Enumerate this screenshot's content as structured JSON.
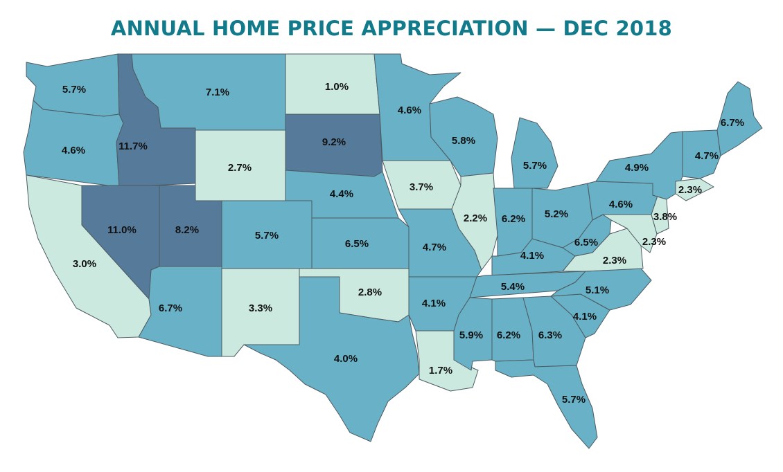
{
  "title": "ANNUAL HOME PRICE APPRECIATION — DEC 2018",
  "colors": {
    "background": "#ffffff",
    "title": "#117a8b",
    "border": "#4d5b62",
    "high": "#557a9a",
    "mid": "#68b1c6",
    "low": "#cce9df"
  },
  "states": {
    "WA": {
      "name": "Washington",
      "label": "5.7%",
      "value": 5.7,
      "tier": "mid"
    },
    "OR": {
      "name": "Oregon",
      "label": "4.6%",
      "value": 4.6,
      "tier": "mid"
    },
    "CA": {
      "name": "California",
      "label": "3.0%",
      "value": 3.0,
      "tier": "low"
    },
    "ID": {
      "name": "Idaho",
      "label": "11.7%",
      "value": 11.7,
      "tier": "high"
    },
    "NV": {
      "name": "Nevada",
      "label": "11.0%",
      "value": 11.0,
      "tier": "high"
    },
    "UT": {
      "name": "Utah",
      "label": "8.2%",
      "value": 8.2,
      "tier": "high"
    },
    "AZ": {
      "name": "Arizona",
      "label": "6.7%",
      "value": 6.7,
      "tier": "mid"
    },
    "MT": {
      "name": "Montana",
      "label": "7.1%",
      "value": 7.1,
      "tier": "mid"
    },
    "WY": {
      "name": "Wyoming",
      "label": "2.7%",
      "value": 2.7,
      "tier": "low"
    },
    "CO": {
      "name": "Colorado",
      "label": "5.7%",
      "value": 5.7,
      "tier": "mid"
    },
    "NM": {
      "name": "New Mexico",
      "label": "3.3%",
      "value": 3.3,
      "tier": "low"
    },
    "ND": {
      "name": "North Dakota",
      "label": "1.0%",
      "value": 1.0,
      "tier": "low"
    },
    "SD": {
      "name": "South Dakota",
      "label": "9.2%",
      "value": 9.2,
      "tier": "high"
    },
    "NE": {
      "name": "Nebraska",
      "label": "4.4%",
      "value": 4.4,
      "tier": "mid"
    },
    "KS": {
      "name": "Kansas",
      "label": "6.5%",
      "value": 6.5,
      "tier": "mid"
    },
    "OK": {
      "name": "Oklahoma",
      "label": "2.8%",
      "value": 2.8,
      "tier": "low"
    },
    "TX": {
      "name": "Texas",
      "label": "4.0%",
      "value": 4.0,
      "tier": "mid"
    },
    "MN": {
      "name": "Minnesota",
      "label": "4.6%",
      "value": 4.6,
      "tier": "mid"
    },
    "IA": {
      "name": "Iowa",
      "label": "3.7%",
      "value": 3.7,
      "tier": "low"
    },
    "MO": {
      "name": "Missouri",
      "label": "4.7%",
      "value": 4.7,
      "tier": "mid"
    },
    "AR": {
      "name": "Arkansas",
      "label": "4.1%",
      "value": 4.1,
      "tier": "mid"
    },
    "LA": {
      "name": "Louisiana",
      "label": "1.7%",
      "value": 1.7,
      "tier": "low"
    },
    "WI": {
      "name": "Wisconsin",
      "label": "5.8%",
      "value": 5.8,
      "tier": "mid"
    },
    "IL": {
      "name": "Illinois",
      "label": "2.2%",
      "value": 2.2,
      "tier": "low"
    },
    "MI": {
      "name": "Michigan",
      "label": "5.7%",
      "value": 5.7,
      "tier": "mid"
    },
    "IN": {
      "name": "Indiana",
      "label": "6.2%",
      "value": 6.2,
      "tier": "mid"
    },
    "OH": {
      "name": "Ohio",
      "label": "5.2%",
      "value": 5.2,
      "tier": "mid"
    },
    "KY": {
      "name": "Kentucky",
      "label": "4.1%",
      "value": 4.1,
      "tier": "mid"
    },
    "TN": {
      "name": "Tennessee",
      "label": "5.4%",
      "value": 5.4,
      "tier": "mid"
    },
    "MS": {
      "name": "Mississippi",
      "label": "5.9%",
      "value": 5.9,
      "tier": "mid"
    },
    "AL": {
      "name": "Alabama",
      "label": "6.2%",
      "value": 6.2,
      "tier": "mid"
    },
    "GA": {
      "name": "Georgia",
      "label": "6.3%",
      "value": 6.3,
      "tier": "mid"
    },
    "FL": {
      "name": "Florida",
      "label": "5.7%",
      "value": 5.7,
      "tier": "mid"
    },
    "SC": {
      "name": "South Carolina",
      "label": "4.1%",
      "value": 4.1,
      "tier": "mid"
    },
    "NC": {
      "name": "North Carolina",
      "label": "5.1%",
      "value": 5.1,
      "tier": "mid"
    },
    "VA": {
      "name": "Virginia",
      "label": "2.3%",
      "value": 2.3,
      "tier": "low"
    },
    "WV": {
      "name": "West Virginia",
      "label": "6.5%",
      "value": 6.5,
      "tier": "mid"
    },
    "MD": {
      "name": "Maryland",
      "label": "2.3%",
      "value": 2.3,
      "tier": "low"
    },
    "PA": {
      "name": "Pennsylvania",
      "label": "4.6%",
      "value": 4.6,
      "tier": "mid"
    },
    "NJ": {
      "name": "New Jersey",
      "label": "3.8%",
      "value": 3.8,
      "tier": "low"
    },
    "NY": {
      "name": "New York",
      "label": "4.9%",
      "value": 4.9,
      "tier": "mid"
    },
    "CT": {
      "name": "Connecticut",
      "label": "2.3%",
      "value": 2.3,
      "tier": "low"
    },
    "VTNH": {
      "name": "Vermont / New Hampshire",
      "label": "4.7%",
      "value": 4.7,
      "tier": "mid"
    },
    "ME": {
      "name": "Maine",
      "label": "6.7%",
      "value": 6.7,
      "tier": "mid"
    }
  }
}
